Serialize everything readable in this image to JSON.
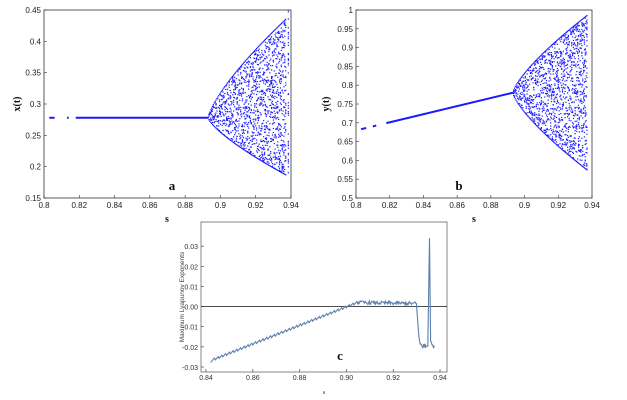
{
  "figure": {
    "panels": [
      {
        "id": "a",
        "label": "a"
      },
      {
        "id": "b",
        "label": "b"
      },
      {
        "id": "c",
        "label": "c"
      }
    ]
  },
  "colors": {
    "points": "#1a1aff",
    "line_c": "#5b7faa",
    "zero_line": "#333333",
    "frame": "#333333"
  },
  "chart_data": [
    {
      "type": "scatter",
      "panel": "a",
      "xlabel": "s",
      "ylabel": "x(t)",
      "xlim": [
        0.8,
        0.94
      ],
      "ylim": [
        0.15,
        0.45
      ],
      "xticks": [
        "0.8",
        "0.82",
        "0.84",
        "0.86",
        "0.88",
        "0.9",
        "0.92",
        "0.94"
      ],
      "yticks": [
        "0.15",
        "0.2",
        "0.25",
        "0.3",
        "0.35",
        "0.4",
        "0.45"
      ],
      "fixed_point_value": 0.278,
      "fixed_point_range": [
        0.803,
        0.893
      ],
      "bifurcation_s": 0.893,
      "envelope_at_max_s": {
        "s": 0.937,
        "upper": 0.435,
        "lower": 0.187
      }
    },
    {
      "type": "scatter",
      "panel": "b",
      "xlabel": "s",
      "ylabel": "y(t)",
      "xlim": [
        0.8,
        0.94
      ],
      "ylim": [
        0.5,
        1.0
      ],
      "xticks": [
        "0.8",
        "0.82",
        "0.84",
        "0.86",
        "0.88",
        "0.9",
        "0.92",
        "0.94"
      ],
      "yticks": [
        "0.5",
        "0.55",
        "0.6",
        "0.65",
        "0.7",
        "0.75",
        "0.8",
        "0.85",
        "0.9",
        "0.95",
        "1"
      ],
      "fixed_point_line": {
        "s_start": 0.803,
        "y_start": 0.683,
        "s_end": 0.893,
        "y_end": 0.78
      },
      "bifurcation_s": 0.893,
      "envelope_at_max_s": {
        "s": 0.937,
        "upper": 0.985,
        "lower": 0.575
      }
    },
    {
      "type": "line",
      "panel": "c",
      "xlabel": "s",
      "ylabel": "Maximum Lyapunov Exponents",
      "xlim": [
        0.84,
        0.94
      ],
      "ylim": [
        -0.03,
        0.04
      ],
      "xticks": [
        "0.84",
        "0.86",
        "0.88",
        "0.90",
        "0.92",
        "0.94"
      ],
      "yticks": [
        "0.03",
        "0.02",
        "0.01",
        "0.00",
        "-0.01",
        "-0.02",
        "-0.03"
      ],
      "zero_line": 0.0,
      "x": [
        0.842,
        0.905,
        0.93,
        0.931,
        0.9315,
        0.935,
        0.9355,
        0.936,
        0.938
      ],
      "y": [
        -0.027,
        0.002,
        0.0015,
        -0.015,
        -0.019,
        -0.02,
        0.034,
        -0.017,
        -0.021
      ]
    }
  ]
}
